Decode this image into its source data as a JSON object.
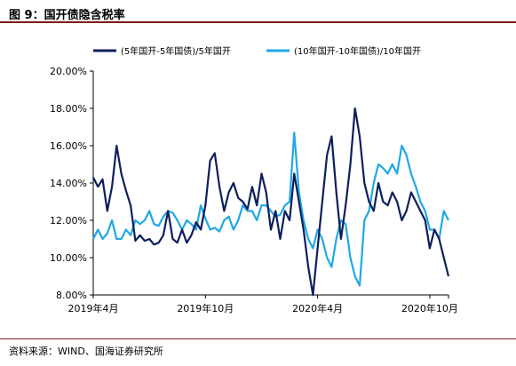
{
  "figure": {
    "title": "图 9：国开债隐含税率",
    "source": "资料来源：WIND、国海证券研究所"
  },
  "colors": {
    "series1": "#0d1f5c",
    "series2": "#1fa8e6",
    "accent_rule": "#7a1a1a",
    "axis": "#000000"
  },
  "chart_data": {
    "type": "line",
    "title": "",
    "xlabel": "",
    "ylabel": "",
    "ylim": [
      8.0,
      20.0
    ],
    "yticks": [
      "8.00%",
      "10.00%",
      "12.00%",
      "14.00%",
      "16.00%",
      "18.00%",
      "20.00%"
    ],
    "xticks": [
      "2019年4月",
      "2019年10月",
      "2020年4月",
      "2020年10月"
    ],
    "xtick_pos": [
      0,
      6,
      12,
      18
    ],
    "xrange": [
      0,
      19
    ],
    "legend_position": "top",
    "grid": false,
    "x": [
      0.0,
      0.25,
      0.5,
      0.75,
      1.0,
      1.25,
      1.5,
      1.75,
      2.0,
      2.25,
      2.5,
      2.75,
      3.0,
      3.25,
      3.5,
      3.75,
      4.0,
      4.25,
      4.5,
      4.75,
      5.0,
      5.25,
      5.5,
      5.75,
      6.0,
      6.25,
      6.5,
      6.75,
      7.0,
      7.25,
      7.5,
      7.75,
      8.0,
      8.25,
      8.5,
      8.75,
      9.0,
      9.25,
      9.5,
      9.75,
      10.0,
      10.25,
      10.5,
      10.75,
      11.0,
      11.25,
      11.5,
      11.75,
      12.0,
      12.25,
      12.5,
      12.75,
      13.0,
      13.25,
      13.5,
      13.75,
      14.0,
      14.25,
      14.5,
      14.75,
      15.0,
      15.25,
      15.5,
      15.75,
      16.0,
      16.25,
      16.5,
      16.75,
      17.0,
      17.25,
      17.5,
      17.75,
      18.0,
      18.25,
      18.5,
      18.75,
      19.0
    ],
    "series": [
      {
        "name": "(5年国开-5年国债)/5年国开",
        "values": [
          14.3,
          13.8,
          14.2,
          12.5,
          13.8,
          16.0,
          14.5,
          13.6,
          12.8,
          10.9,
          11.2,
          10.9,
          11.0,
          10.7,
          10.8,
          11.2,
          12.5,
          11.0,
          10.8,
          11.5,
          10.8,
          11.2,
          11.9,
          11.5,
          12.8,
          15.2,
          15.6,
          13.8,
          12.5,
          13.5,
          14.0,
          13.2,
          13.0,
          12.6,
          13.8,
          12.8,
          14.5,
          13.5,
          11.5,
          12.5,
          11.0,
          12.5,
          12.0,
          14.5,
          13.0,
          11.5,
          9.5,
          8.0,
          10.5,
          13.0,
          15.5,
          16.5,
          13.5,
          11.0,
          12.8,
          15.0,
          18.0,
          16.5,
          14.0,
          13.0,
          12.5,
          14.0,
          13.0,
          12.8,
          13.5,
          13.0,
          12.0,
          12.5,
          13.5,
          13.0,
          12.5,
          12.0,
          10.5,
          11.5,
          11.0,
          10.0,
          9.0
        ]
      },
      {
        "name": "(10年国开-10年国债)/10年国开",
        "values": [
          11.0,
          11.5,
          11.0,
          11.3,
          12.0,
          11.0,
          11.0,
          11.5,
          11.2,
          12.0,
          11.8,
          12.0,
          12.5,
          11.8,
          11.7,
          12.2,
          12.5,
          12.4,
          12.0,
          11.5,
          12.0,
          11.8,
          11.5,
          12.8,
          12.1,
          11.5,
          11.6,
          11.4,
          12.0,
          12.2,
          11.5,
          12.0,
          12.8,
          12.5,
          12.5,
          12.0,
          12.8,
          12.8,
          12.5,
          12.2,
          12.3,
          12.8,
          13.0,
          16.7,
          13.5,
          12.0,
          11.0,
          10.5,
          11.5,
          11.0,
          10.0,
          9.5,
          11.0,
          12.0,
          11.8,
          10.0,
          9.0,
          8.5,
          12.0,
          12.5,
          14.0,
          15.0,
          14.8,
          14.5,
          15.0,
          14.5,
          16.0,
          15.5,
          14.5,
          13.8,
          13.0,
          12.5,
          11.5,
          11.5,
          11.0,
          12.5,
          12.0
        ]
      }
    ]
  }
}
